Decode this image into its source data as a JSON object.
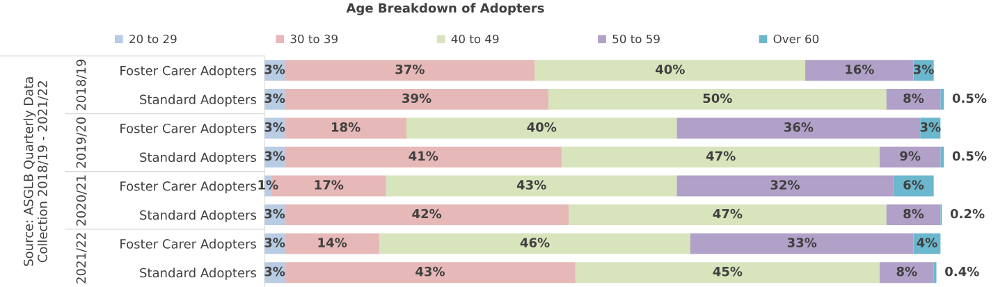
{
  "chart_data": {
    "type": "bar",
    "orientation": "horizontal",
    "stacked": true,
    "title": "Age Breakdown of Adopters",
    "categories": [
      "Foster Carer Adopters",
      "Standard Adopters",
      "Foster Carer Adopters",
      "Standard Adopters",
      "Foster Carer Adopters",
      "Standard Adopters",
      "Foster Carer Adopters",
      "Standard Adopters"
    ],
    "series": [
      {
        "name": "20 to 29",
        "color": "#b8cce4",
        "values": [
          3,
          3,
          3,
          3,
          1,
          3,
          3,
          3
        ],
        "value_labels": [
          "3%",
          "3%",
          "3%",
          "3%",
          "1%",
          "3%",
          "3%",
          "3%"
        ]
      },
      {
        "name": "30 to 39",
        "color": "#e6b8b7",
        "values": [
          37,
          39,
          18,
          41,
          17,
          42,
          14,
          43
        ],
        "value_labels": [
          "37%",
          "39%",
          "18%",
          "41%",
          "17%",
          "42%",
          "14%",
          "43%"
        ]
      },
      {
        "name": "40 to 49",
        "color": "#d8e4bc",
        "values": [
          40,
          50,
          40,
          47,
          43,
          47,
          46,
          45
        ],
        "value_labels": [
          "40%",
          "50%",
          "40%",
          "47%",
          "43%",
          "47%",
          "46%",
          "45%"
        ]
      },
      {
        "name": "50 to 59",
        "color": "#b1a0c7",
        "values": [
          16,
          8,
          36,
          9,
          32,
          8,
          33,
          8
        ],
        "value_labels": [
          "16%",
          "8%",
          "36%",
          "9%",
          "32%",
          "8%",
          "33%",
          "8%"
        ]
      },
      {
        "name": "Over 60",
        "color": "#6bb7cd",
        "values": [
          3,
          0.5,
          3,
          0.5,
          6,
          0.2,
          4,
          0.4
        ],
        "value_labels": [
          "3%",
          "0.5%",
          "3%",
          "0.5%",
          "6%",
          "0.2%",
          "4%",
          "0.4%"
        ]
      }
    ],
    "annotations": [
      "Source: ASGLB Quarterly Data\nCollection 2018/19 - 2021/22",
      "2018/19",
      "2019/20",
      "2020/21",
      "2021/22"
    ],
    "legend": "top",
    "grid": false
  }
}
